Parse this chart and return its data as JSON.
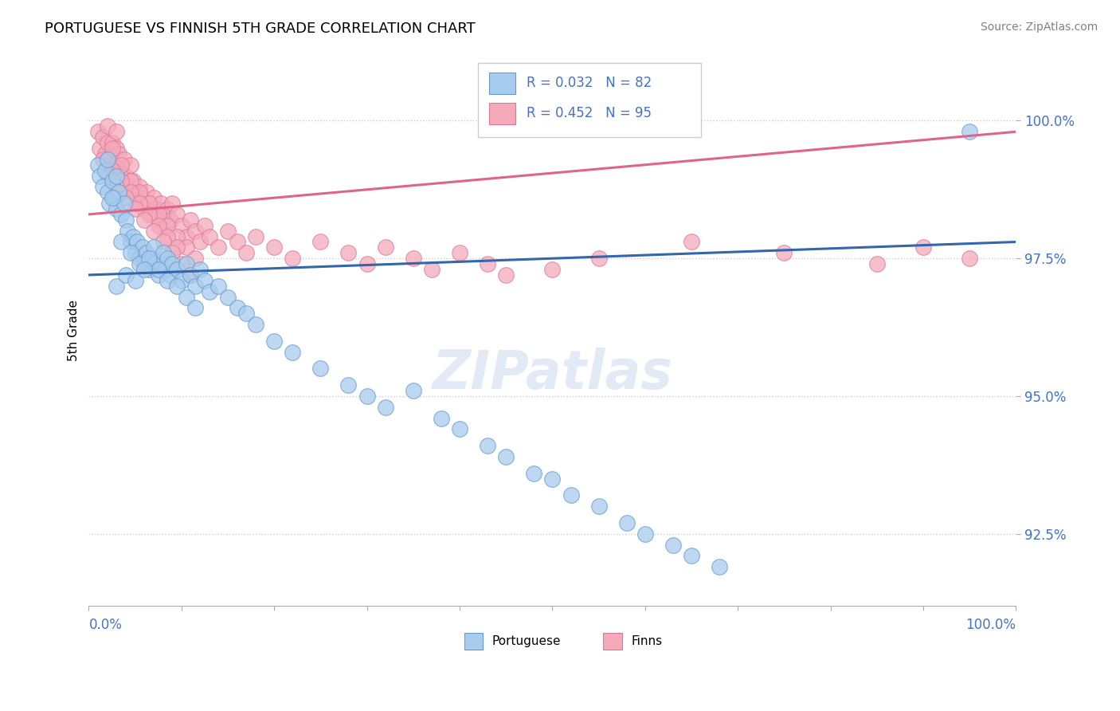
{
  "title": "PORTUGUESE VS FINNISH 5TH GRADE CORRELATION CHART",
  "source": "Source: ZipAtlas.com",
  "ylabel": "5th Grade",
  "xlim": [
    0.0,
    100.0
  ],
  "ylim": [
    91.2,
    101.2
  ],
  "yticks": [
    92.5,
    95.0,
    97.5,
    100.0
  ],
  "ytick_labels": [
    "92.5%",
    "95.0%",
    "97.5%",
    "100.0%"
  ],
  "portuguese_color": "#A8CCEE",
  "portuguese_edge": "#6699CC",
  "finns_color": "#F4AABB",
  "finns_edge": "#DD7799",
  "trend_portuguese_color": "#3366AA",
  "trend_finns_color": "#DD6688",
  "legend_color_blue": "#4472C4",
  "legend_color_pink": "#DD6688",
  "port_trend_x0": 0.0,
  "port_trend_y0": 97.2,
  "port_trend_x1": 100.0,
  "port_trend_y1": 97.8,
  "finn_trend_x0": 0.0,
  "finn_trend_y0": 98.3,
  "finn_trend_x1": 100.0,
  "finn_trend_y1": 99.8,
  "portuguese_x": [
    1.0,
    1.2,
    1.5,
    1.8,
    2.0,
    2.0,
    2.2,
    2.5,
    2.8,
    3.0,
    3.0,
    3.2,
    3.5,
    3.8,
    4.0,
    4.2,
    4.5,
    4.8,
    5.0,
    5.2,
    5.5,
    5.8,
    6.0,
    6.2,
    6.5,
    6.8,
    7.0,
    7.2,
    7.5,
    7.8,
    8.0,
    8.2,
    8.5,
    8.8,
    9.0,
    9.5,
    10.0,
    10.5,
    11.0,
    11.5,
    12.0,
    12.5,
    13.0,
    14.0,
    15.0,
    16.0,
    17.0,
    18.0,
    20.0,
    22.0,
    2.5,
    3.5,
    4.5,
    5.5,
    6.5,
    7.5,
    8.5,
    9.5,
    10.5,
    11.5,
    25.0,
    28.0,
    30.0,
    32.0,
    35.0,
    38.0,
    40.0,
    43.0,
    45.0,
    48.0,
    50.0,
    52.0,
    55.0,
    58.0,
    60.0,
    63.0,
    65.0,
    68.0,
    95.0,
    3.0,
    4.0,
    5.0,
    6.0
  ],
  "portuguese_y": [
    99.2,
    99.0,
    98.8,
    99.1,
    98.7,
    99.3,
    98.5,
    98.9,
    98.6,
    98.4,
    99.0,
    98.7,
    98.3,
    98.5,
    98.2,
    98.0,
    97.8,
    97.9,
    97.6,
    97.8,
    97.5,
    97.7,
    97.4,
    97.6,
    97.3,
    97.5,
    97.7,
    97.4,
    97.2,
    97.4,
    97.6,
    97.3,
    97.5,
    97.2,
    97.4,
    97.3,
    97.1,
    97.4,
    97.2,
    97.0,
    97.3,
    97.1,
    96.9,
    97.0,
    96.8,
    96.6,
    96.5,
    96.3,
    96.0,
    95.8,
    98.6,
    97.8,
    97.6,
    97.4,
    97.5,
    97.3,
    97.1,
    97.0,
    96.8,
    96.6,
    95.5,
    95.2,
    95.0,
    94.8,
    95.1,
    94.6,
    94.4,
    94.1,
    93.9,
    93.6,
    93.5,
    93.2,
    93.0,
    92.7,
    92.5,
    92.3,
    92.1,
    91.9,
    99.8,
    97.0,
    97.2,
    97.1,
    97.3
  ],
  "finns_x": [
    1.0,
    1.2,
    1.5,
    1.8,
    2.0,
    2.0,
    2.2,
    2.5,
    2.8,
    3.0,
    3.0,
    3.2,
    3.5,
    3.8,
    4.0,
    4.2,
    4.5,
    4.8,
    5.0,
    5.2,
    5.5,
    5.8,
    6.0,
    6.2,
    6.5,
    6.8,
    7.0,
    7.2,
    7.5,
    7.8,
    8.0,
    8.2,
    8.5,
    8.8,
    9.0,
    9.5,
    10.0,
    10.5,
    11.0,
    11.5,
    12.0,
    12.5,
    13.0,
    14.0,
    15.0,
    16.0,
    17.0,
    18.0,
    20.0,
    22.0,
    2.5,
    3.5,
    4.5,
    5.5,
    6.5,
    7.5,
    8.5,
    9.5,
    10.5,
    11.5,
    25.0,
    28.0,
    30.0,
    32.0,
    35.0,
    37.0,
    40.0,
    43.0,
    45.0,
    1.5,
    2.5,
    3.5,
    4.5,
    5.5,
    6.5,
    7.5,
    8.5,
    9.5,
    55.0,
    65.0,
    75.0,
    85.0,
    90.0,
    95.0,
    50.0,
    2.0,
    3.0,
    4.0,
    5.0,
    6.0,
    7.0,
    8.0,
    9.0,
    10.0,
    11.0
  ],
  "finns_y": [
    99.8,
    99.5,
    99.7,
    99.4,
    99.6,
    99.9,
    99.3,
    99.6,
    99.2,
    99.5,
    99.8,
    99.4,
    99.1,
    99.3,
    99.0,
    98.8,
    99.2,
    98.9,
    98.7,
    98.5,
    98.8,
    98.6,
    98.4,
    98.7,
    98.5,
    98.3,
    98.6,
    98.4,
    98.2,
    98.5,
    98.3,
    98.1,
    98.4,
    98.2,
    98.5,
    98.3,
    98.1,
    97.9,
    98.2,
    98.0,
    97.8,
    98.1,
    97.9,
    97.7,
    98.0,
    97.8,
    97.6,
    97.9,
    97.7,
    97.5,
    99.5,
    99.2,
    98.9,
    98.7,
    98.5,
    98.3,
    98.1,
    97.9,
    97.7,
    97.5,
    97.8,
    97.6,
    97.4,
    97.7,
    97.5,
    97.3,
    97.6,
    97.4,
    97.2,
    99.3,
    99.1,
    98.9,
    98.7,
    98.5,
    98.3,
    98.1,
    97.9,
    97.7,
    97.5,
    97.8,
    97.6,
    97.4,
    97.7,
    97.5,
    97.3,
    99.0,
    98.8,
    98.6,
    98.4,
    98.2,
    98.0,
    97.8,
    97.6,
    97.4,
    97.2
  ]
}
